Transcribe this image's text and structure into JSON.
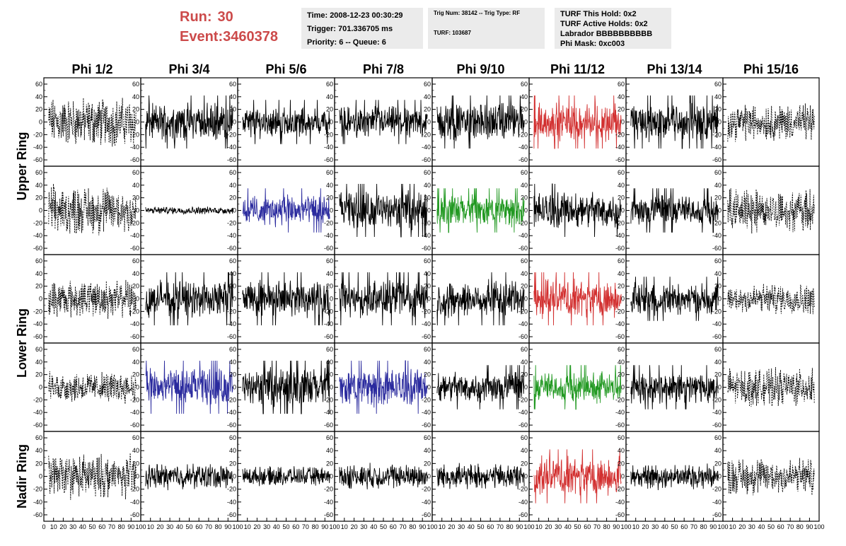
{
  "header": {
    "run_label": "Run:",
    "run_value": "30",
    "event_label": "Event:",
    "event_value": "3460378",
    "time": "Time: 2008-12-23 00:30:29",
    "trigger": "Trigger: 701.336705 ms",
    "priority": "Priority: 6 -- Queue: 6",
    "trig_num": "Trig Num: 38142 -- Trig Type: RF",
    "turf": "TURF: 103687",
    "turf_this_hold": "TURF This Hold: 0x2",
    "turf_active_holds": "TURF Active Holds: 0x2",
    "labrador": "Labrador BBBBBBBBBB",
    "phi_mask": "Phi Mask: 0xc003"
  },
  "chart_data": {
    "type": "line",
    "columns": [
      "Phi 1/2",
      "Phi 3/4",
      "Phi 5/6",
      "Phi 7/8",
      "Phi 9/10",
      "Phi 11/12",
      "Phi 13/14",
      "Phi 15/16"
    ],
    "row_labels": [
      {
        "text": "Upper Ring",
        "rows": [
          0,
          1
        ]
      },
      {
        "text": "Lower Ring",
        "rows": [
          2,
          3
        ]
      },
      {
        "text": "Nadir Ring",
        "rows": [
          4
        ]
      }
    ],
    "xlim": [
      0,
      100
    ],
    "ylim": [
      -70,
      70
    ],
    "yticks": [
      -60,
      -40,
      -20,
      0,
      20,
      40,
      60
    ],
    "xticks": [
      0,
      10,
      20,
      30,
      40,
      50,
      60,
      70,
      80,
      90,
      100
    ],
    "colors": {
      "black": "#000000",
      "red": "#d22f2f",
      "blue": "#2a2a9e",
      "green": "#229922"
    },
    "panels": [
      [
        "dash-40",
        "black-30",
        "black-25",
        "black-25",
        "black-30",
        "red-30",
        "black-30",
        "dash-30"
      ],
      [
        "dash-40",
        "black-6",
        "blue-25",
        "black-30",
        "green-25",
        "black-30",
        "black-25",
        "dash-35"
      ],
      [
        "dash-30",
        "black-30",
        "black-30",
        "black-30",
        "black-30",
        "red-30",
        "black-25",
        "dash-25"
      ],
      [
        "dash-25",
        "blue-30",
        "black-30",
        "blue-30",
        "black-25",
        "green-25",
        "black-25",
        "dash-30"
      ],
      [
        "dash-35",
        "black-20",
        "black-15",
        "black-20",
        "black-20",
        "red-30",
        "black-20",
        "dash-30"
      ]
    ],
    "grid": false
  }
}
